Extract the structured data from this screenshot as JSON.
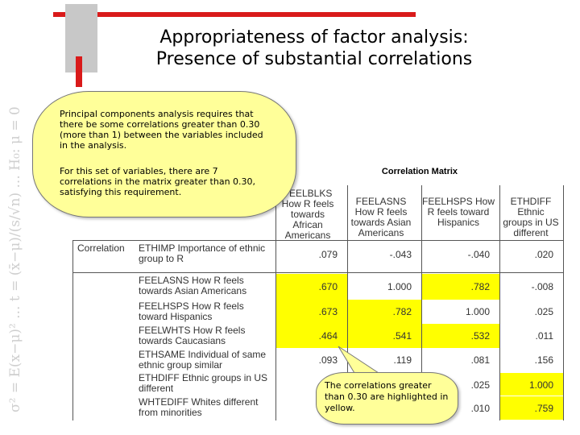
{
  "slide": {
    "title_line1": "Appropriateness of factor analysis:",
    "title_line2": "Presence of substantial correlations"
  },
  "callout_main": {
    "paragraph1": "Principal components analysis requires that there be some correlations greater than 0.30 (more than 1) between the variables included in the analysis.",
    "paragraph2": "For this set of variables, there are 7 correlations in the matrix greater than 0.30, satisfying this requirement."
  },
  "callout_highlight": {
    "text": "The correlations greater than 0.30 are highlighted in yellow."
  },
  "matrix": {
    "title": "Correlation Matrix",
    "columns": [
      "FEELBLKS How R feels towards African Americans",
      "FEELASNS How R feels towards Asian Americans",
      "FEELHSPS How R feels toward Hispanics",
      "ETHDIFF Ethnic groups in US different"
    ],
    "row_section_label": "Correlation",
    "rows": [
      {
        "label": "ETHIMP Importance of ethnic group to R",
        "values": [
          ".079",
          "-.043",
          "-.040",
          ".020"
        ]
      },
      {
        "label": "FEELASNS How R feels towards Asian Americans",
        "values": [
          ".670",
          "1.000",
          ".782",
          "-.008"
        ]
      },
      {
        "label": "FEELHSPS How R feels toward Hispanics",
        "values": [
          ".673",
          ".782",
          "1.000",
          ".025"
        ]
      },
      {
        "label": "FEELWHTS How R feels towards Caucasians",
        "values": [
          ".464",
          ".541",
          ".532",
          ".011"
        ]
      },
      {
        "label": "ETHSAME Individual of same ethnic group similar",
        "values": [
          ".093",
          ".119",
          ".081",
          ".156"
        ]
      },
      {
        "label": "ETHDIFF Ethnic groups in US different",
        "values": [
          "",
          "",
          ".025",
          "1.000"
        ]
      },
      {
        "label": "WHTEDIFF Whites different from minorities",
        "values": [
          "",
          "",
          ".010",
          ".759"
        ]
      }
    ]
  },
  "colors": {
    "accent_red": "#d91a1a",
    "highlight_yellow": "#ffff00",
    "callout_fill": "#ffff99"
  }
}
